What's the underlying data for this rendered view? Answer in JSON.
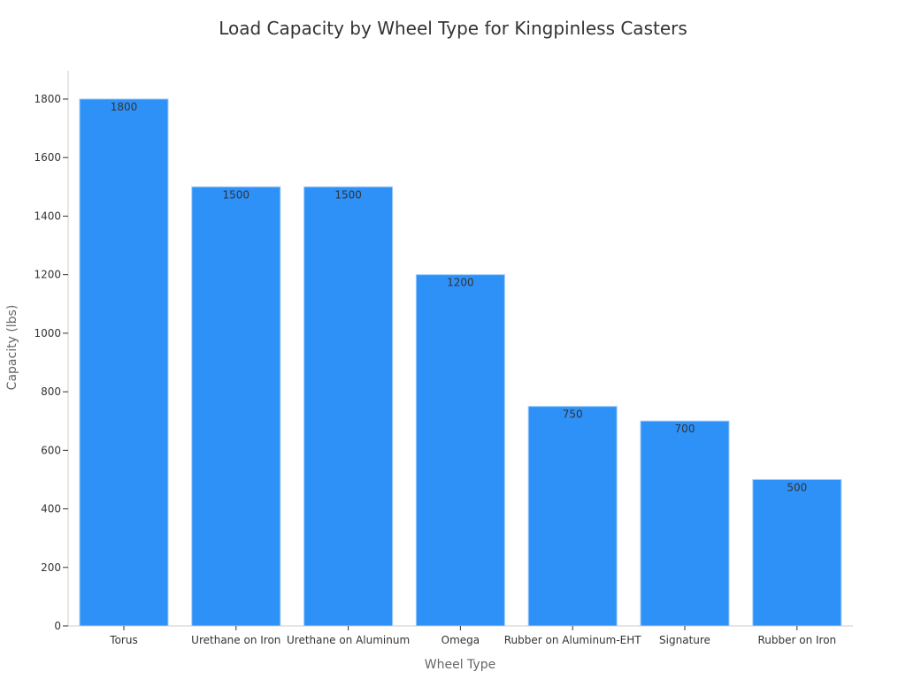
{
  "chart_data": {
    "type": "bar",
    "title": "Load Capacity by Wheel Type for Kingpinless Casters",
    "xlabel": "Wheel Type",
    "ylabel": "Capacity (lbs)",
    "categories": [
      "Torus",
      "Urethane on Iron",
      "Urethane on Aluminum",
      "Omega",
      "Rubber on Aluminum-EHT",
      "Signature",
      "Rubber on Iron"
    ],
    "values": [
      1800,
      1500,
      1500,
      1200,
      750,
      700,
      500
    ],
    "ylim": [
      0,
      1900
    ],
    "yticks": [
      0,
      200,
      400,
      600,
      800,
      1000,
      1200,
      1400,
      1600,
      1800
    ],
    "bar_color": "#2e91f8",
    "axis_color": "#cccccc",
    "grid": false
  }
}
